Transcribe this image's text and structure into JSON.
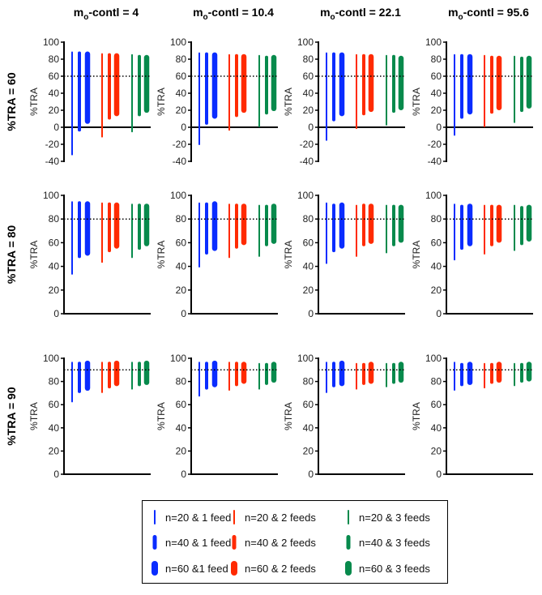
{
  "chart_data": {
    "type": "range-bar-grid",
    "column_titles": [
      {
        "main": "m",
        "sub": "o",
        "rest": "-contl = 4"
      },
      {
        "main": "m",
        "sub": "o",
        "rest": "-contl = 10.4"
      },
      {
        "main": "m",
        "sub": "o",
        "rest": "-contl = 22.1"
      },
      {
        "main": "m",
        "sub": "o",
        "rest": "-contl = 95.6"
      }
    ],
    "row_titles": [
      "%TRA = 60",
      "%TRA = 80",
      "%TRA = 90"
    ],
    "ylabel": "%TRA",
    "rows": [
      {
        "reference": 60,
        "ylim": [
          -40,
          100
        ],
        "yticks": [
          -40,
          -20,
          0,
          20,
          40,
          60,
          80,
          100
        ],
        "panels": [
          [
            [
              -33,
              89
            ],
            [
              -5,
              89
            ],
            [
              4,
              89
            ],
            [
              -12,
              87
            ],
            [
              9,
              87
            ],
            [
              13,
              87
            ],
            [
              -6,
              86
            ],
            [
              13,
              85
            ],
            [
              17,
              85
            ]
          ],
          [
            [
              -21,
              88
            ],
            [
              3,
              88
            ],
            [
              10,
              88
            ],
            [
              -4,
              86
            ],
            [
              12,
              86
            ],
            [
              17,
              86
            ],
            [
              0,
              85
            ],
            [
              15,
              84
            ],
            [
              19,
              85
            ]
          ],
          [
            [
              -16,
              88
            ],
            [
              7,
              88
            ],
            [
              13,
              88
            ],
            [
              -2,
              86
            ],
            [
              14,
              86
            ],
            [
              18,
              86
            ],
            [
              2,
              85
            ],
            [
              17,
              85
            ],
            [
              20,
              84
            ]
          ],
          [
            [
              -10,
              86
            ],
            [
              10,
              86
            ],
            [
              15,
              86
            ],
            [
              0,
              85
            ],
            [
              16,
              84
            ],
            [
              20,
              84
            ],
            [
              5,
              84
            ],
            [
              18,
              83
            ],
            [
              22,
              84
            ]
          ]
        ]
      },
      {
        "reference": 80,
        "ylim": [
          0,
          100
        ],
        "yticks": [
          0,
          20,
          40,
          60,
          80,
          100
        ],
        "panels": [
          [
            [
              33,
              95
            ],
            [
              47,
              95
            ],
            [
              49,
              95
            ],
            [
              43,
              94
            ],
            [
              52,
              94
            ],
            [
              55,
              94
            ],
            [
              47,
              93
            ],
            [
              54,
              93
            ],
            [
              57,
              93
            ]
          ],
          [
            [
              39,
              94
            ],
            [
              50,
              94
            ],
            [
              53,
              95
            ],
            [
              47,
              93
            ],
            [
              55,
              93
            ],
            [
              58,
              93
            ],
            [
              48,
              92
            ],
            [
              57,
              92
            ],
            [
              59,
              93
            ]
          ],
          [
            [
              42,
              94
            ],
            [
              52,
              93
            ],
            [
              55,
              94
            ],
            [
              48,
              92
            ],
            [
              57,
              93
            ],
            [
              59,
              93
            ],
            [
              51,
              92
            ],
            [
              57,
              92
            ],
            [
              60,
              92
            ]
          ],
          [
            [
              45,
              93
            ],
            [
              54,
              92
            ],
            [
              57,
              93
            ],
            [
              50,
              92
            ],
            [
              57,
              92
            ],
            [
              60,
              92
            ],
            [
              53,
              92
            ],
            [
              58,
              91
            ],
            [
              61,
              92
            ]
          ]
        ]
      },
      {
        "reference": 90,
        "ylim": [
          0,
          100
        ],
        "yticks": [
          0,
          20,
          40,
          60,
          80,
          100
        ],
        "panels": [
          [
            [
              62,
              97
            ],
            [
              70,
              97
            ],
            [
              72,
              98
            ],
            [
              70,
              97
            ],
            [
              74,
              97
            ],
            [
              76,
              98
            ],
            [
              73,
              97
            ],
            [
              76,
              97
            ],
            [
              77,
              98
            ]
          ],
          [
            [
              67,
              97
            ],
            [
              73,
              97
            ],
            [
              75,
              98
            ],
            [
              72,
              97
            ],
            [
              76,
              97
            ],
            [
              78,
              97
            ],
            [
              73,
              96
            ],
            [
              77,
              96
            ],
            [
              79,
              97
            ]
          ],
          [
            [
              70,
              97
            ],
            [
              75,
              97
            ],
            [
              76,
              98
            ],
            [
              73,
              96
            ],
            [
              77,
              96
            ],
            [
              78,
              97
            ],
            [
              75,
              96
            ],
            [
              78,
              96
            ],
            [
              79,
              97
            ]
          ],
          [
            [
              72,
              97
            ],
            [
              76,
              96
            ],
            [
              77,
              97
            ],
            [
              74,
              96
            ],
            [
              78,
              96
            ],
            [
              79,
              97
            ],
            [
              76,
              96
            ],
            [
              79,
              96
            ],
            [
              80,
              97
            ]
          ]
        ]
      }
    ],
    "series": [
      {
        "name": "n=20 & 1 feed",
        "color": "#0a2cff",
        "n": 20,
        "feeds": 1
      },
      {
        "name": "n=40 & 1 feed",
        "color": "#0a2cff",
        "n": 40,
        "feeds": 1
      },
      {
        "name": "n=60 &1 feed",
        "color": "#0a2cff",
        "n": 60,
        "feeds": 1
      },
      {
        "name": "n=20 & 2 feeds",
        "color": "#ff2a00",
        "n": 20,
        "feeds": 2
      },
      {
        "name": "n=40 & 2 feeds",
        "color": "#ff2a00",
        "n": 40,
        "feeds": 2
      },
      {
        "name": "n=60 & 2 feeds",
        "color": "#ff2a00",
        "n": 60,
        "feeds": 2
      },
      {
        "name": "n=20 & 3 feeds",
        "color": "#078a4c",
        "n": 20,
        "feeds": 3
      },
      {
        "name": "n=40 & 3 feeds",
        "color": "#078a4c",
        "n": 40,
        "feeds": 3
      },
      {
        "name": "n=60 & 3 feeds",
        "color": "#078a4c",
        "n": 60,
        "feeds": 3
      }
    ],
    "legend_position": "bottom"
  }
}
